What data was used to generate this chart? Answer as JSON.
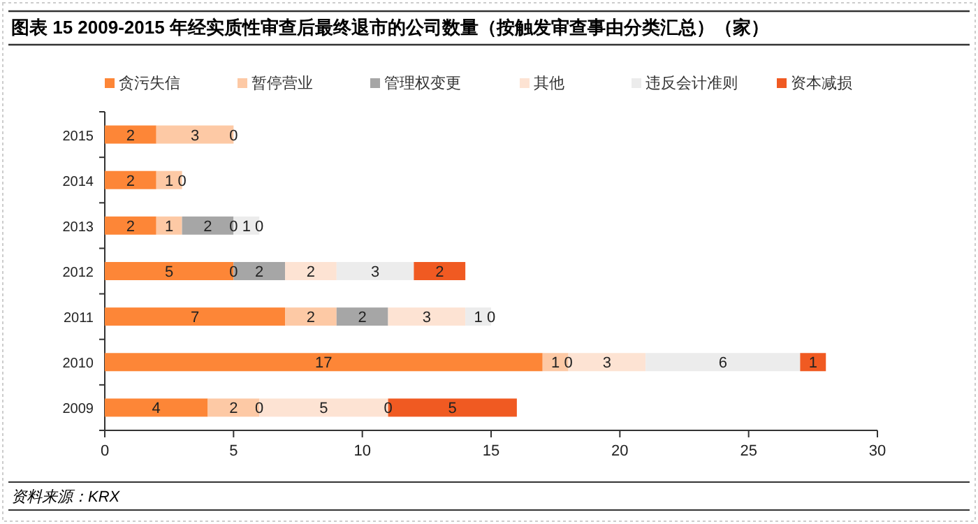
{
  "chart_data": {
    "type": "bar",
    "orientation": "horizontal",
    "stacked": true,
    "legend": "top",
    "title": "图表 15   2009-2015 年经实质性审查后最终退市的公司数量（按触发审查事由分类汇总）（家）",
    "annotations": [
      "资料来源：KRX",
      {
        "text": "0",
        "x": 5,
        "y": "2012"
      },
      {
        "text": "0",
        "x": 18,
        "y": "2010"
      },
      {
        "text": "0",
        "x": 6,
        "y": "2009"
      },
      {
        "text": "0",
        "x": 11,
        "y": "2009"
      }
    ],
    "categories": [
      "2015",
      "2014",
      "2013",
      "2012",
      "2011",
      "2010",
      "2009"
    ],
    "xlim": [
      0,
      30
    ],
    "xticks": [
      0,
      5,
      10,
      15,
      20,
      25,
      30
    ],
    "series": [
      {
        "name": "贪污失信",
        "color": "#fd8637",
        "values": [
          2,
          2,
          2,
          5,
          7,
          17,
          4
        ],
        "value_labels": [
          "2",
          "2",
          "2",
          "5",
          "7",
          "17",
          "4"
        ]
      },
      {
        "name": "暂停营业",
        "color": "#fdc9a5",
        "values": [
          3,
          1,
          1,
          0,
          2,
          1,
          2
        ],
        "value_labels": [
          "3",
          "1",
          "1",
          null,
          "2",
          "1",
          "2"
        ]
      },
      {
        "name": "管理权变更",
        "color": "#a6a6a6",
        "values": [
          0,
          0,
          2,
          2,
          2,
          0,
          0
        ],
        "value_labels": [
          "0",
          "0",
          "2",
          "2",
          "2",
          null,
          null
        ]
      },
      {
        "name": "其他",
        "color": "#fde3d3",
        "values": [
          null,
          null,
          0,
          2,
          3,
          3,
          5
        ],
        "value_labels": [
          null,
          null,
          "0",
          "2",
          "3",
          "3",
          "5"
        ]
      },
      {
        "name": "违反会计准则",
        "color": "#ececec",
        "values": [
          null,
          null,
          1,
          3,
          1,
          6,
          0
        ],
        "value_labels": [
          null,
          null,
          "1",
          "3",
          "1",
          "6",
          null
        ]
      },
      {
        "name": "资本减损",
        "color": "#f05a22",
        "values": [
          null,
          null,
          0,
          2,
          0,
          1,
          5
        ],
        "value_labels": [
          null,
          null,
          "0",
          "2",
          "0",
          "1",
          "5"
        ]
      }
    ]
  }
}
